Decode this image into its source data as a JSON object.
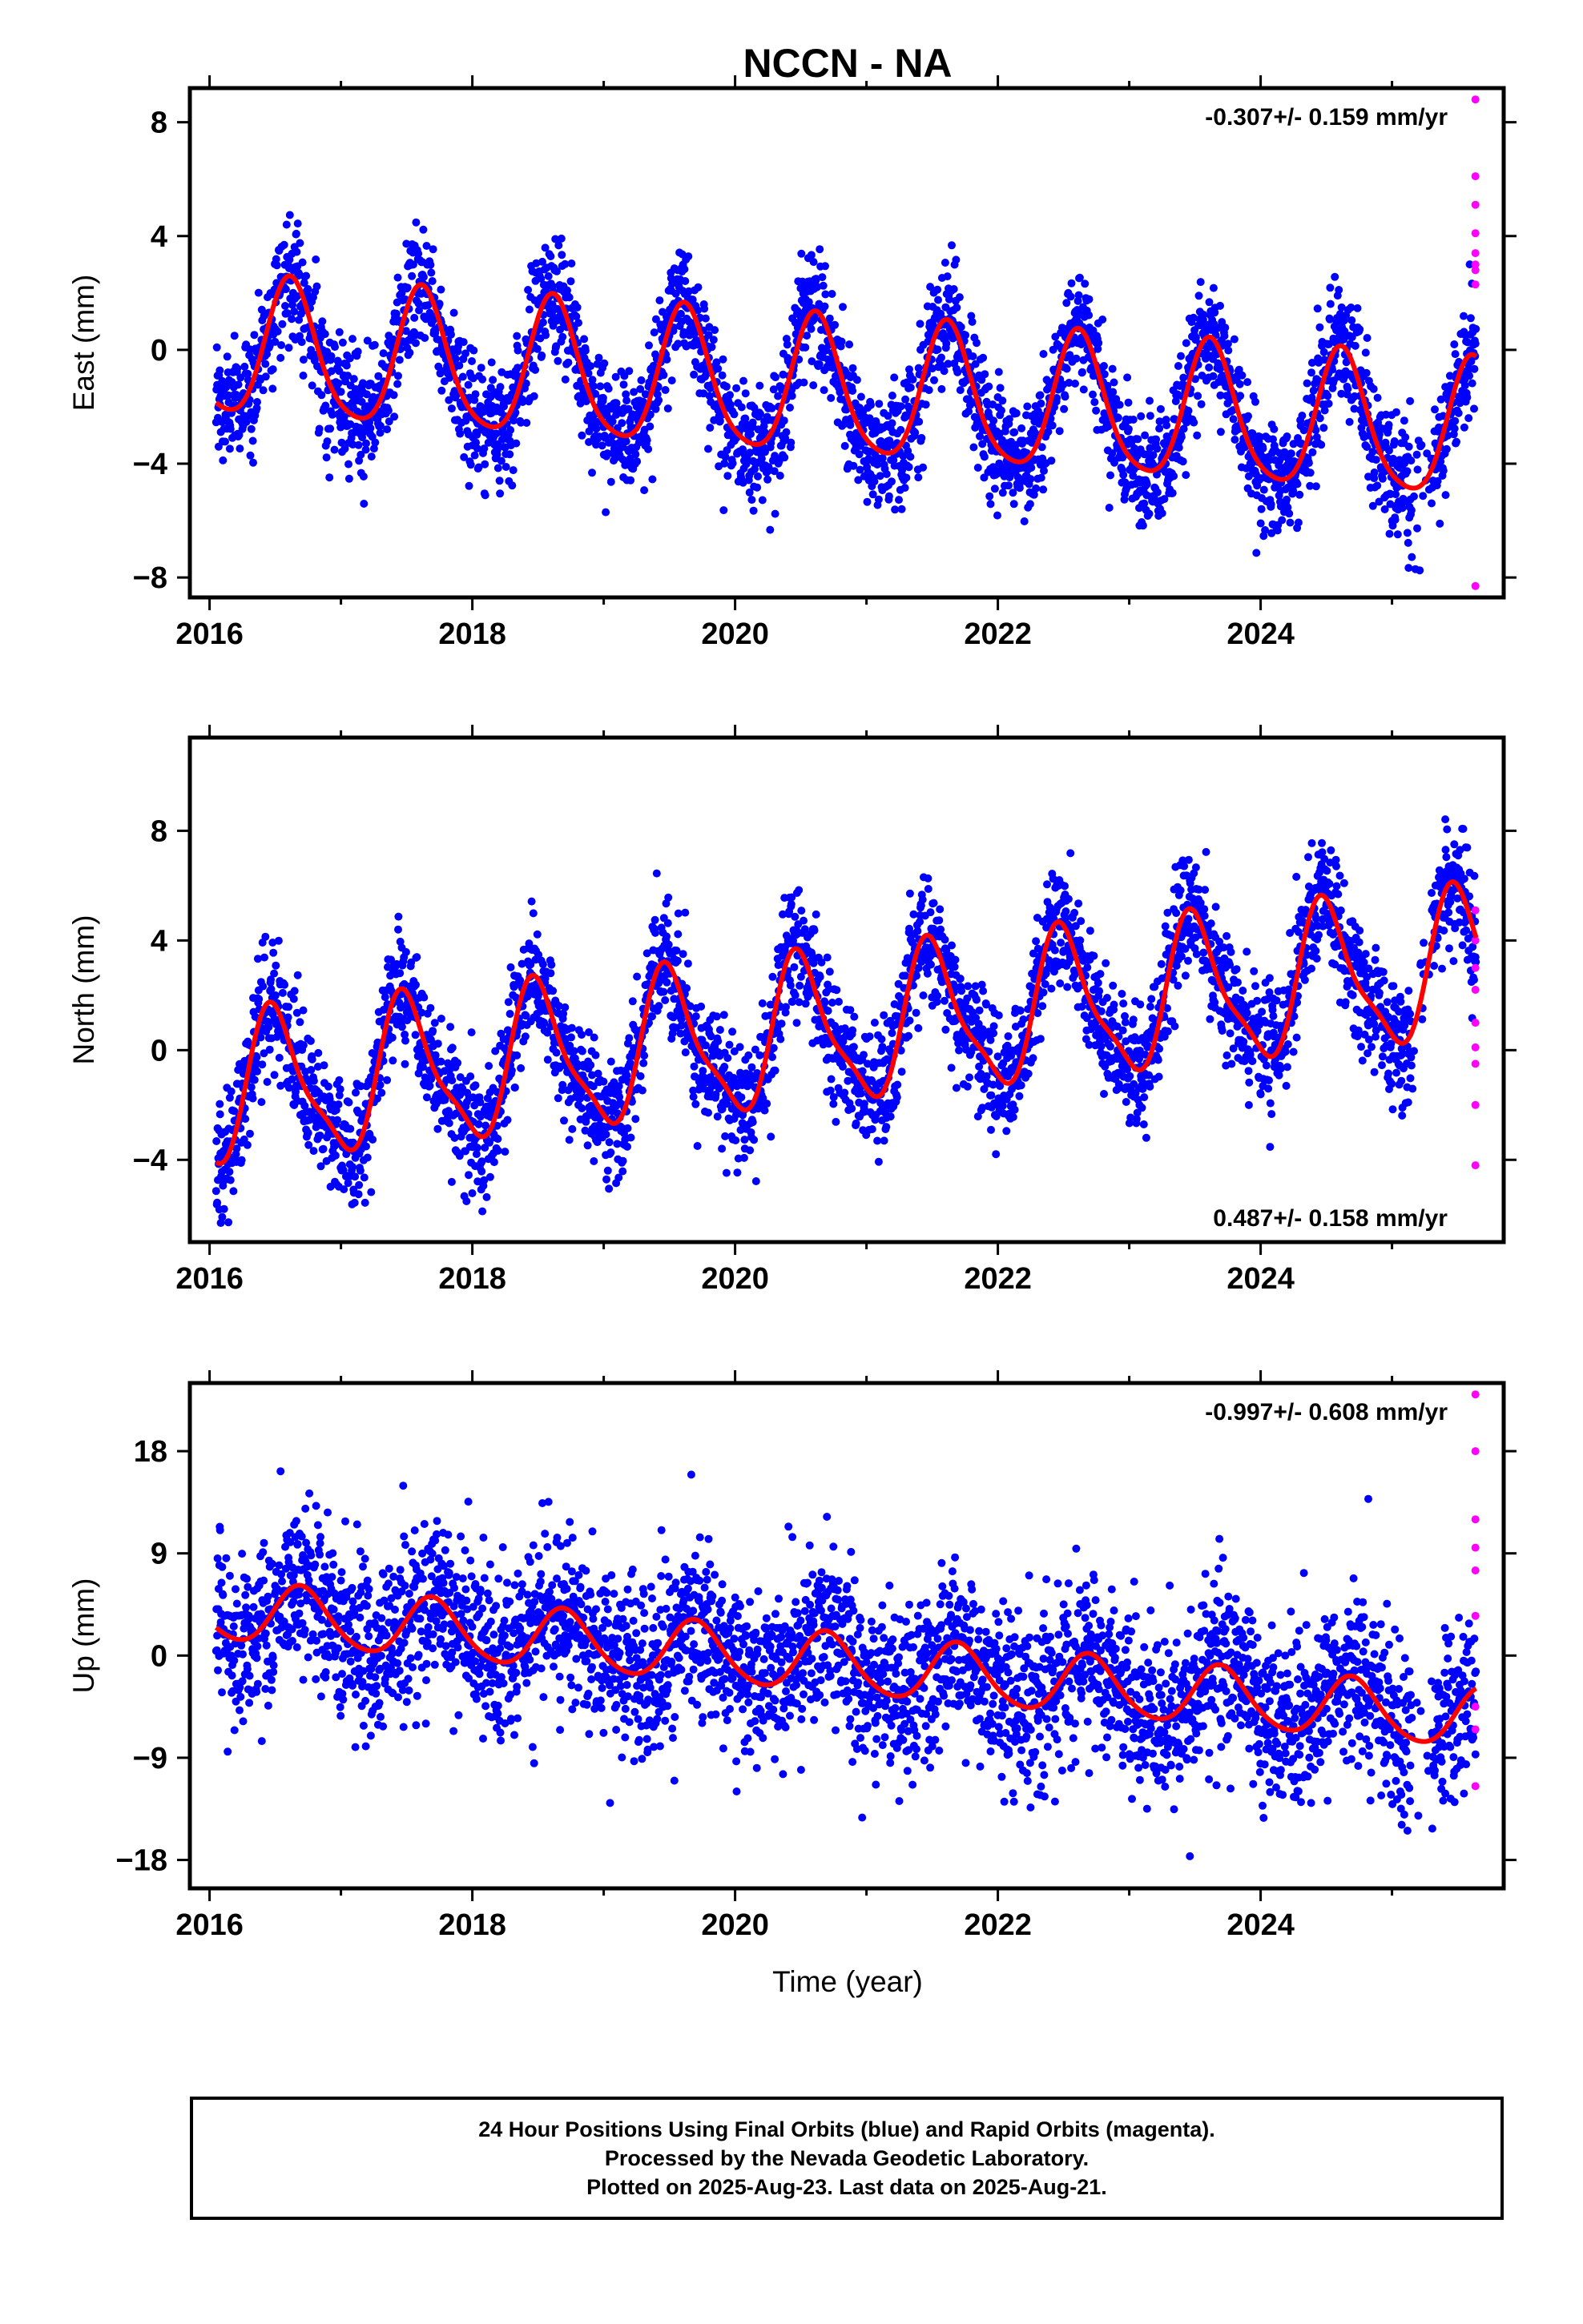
{
  "title": "NCCN - NA",
  "xlabel": "Time (year)",
  "footer": {
    "line1": "24 Hour Positions Using Final Orbits (blue) and Rapid Orbits (magenta).",
    "line2": "Processed by the Nevada Geodetic Laboratory.",
    "line3": "Plotted on 2025-Aug-23. Last data on 2025-Aug-21."
  },
  "colors": {
    "final": "#0000ff",
    "rapid": "#ff00ff",
    "fit": "#ff0000",
    "axes": "#000000"
  },
  "chart_data": [
    {
      "type": "scatter",
      "component": "east",
      "ylabel": "East (mm)",
      "rate_label": "-0.307+/- 0.159 mm/yr",
      "rate_position": "top-right",
      "xlim": [
        2015.85,
        2025.85
      ],
      "ylim": [
        -8.7,
        9.2
      ],
      "yticks": [
        -8,
        -4,
        0,
        4,
        8
      ],
      "xticks": [
        2016,
        2018,
        2020,
        2022,
        2024
      ],
      "x_start": 2016.05,
      "x_end": 2025.64,
      "fit": {
        "offset": 0.0,
        "rate": -0.307,
        "annual_amp": 2.4,
        "annual_peak": 2016.62,
        "semiannual_amp": 0.4,
        "semiannual_phase": 0.3
      },
      "scatter_sd": 1.05,
      "rapid_values": [
        8.8,
        6.1,
        5.1,
        4.1,
        3.4,
        3.0,
        2.8,
        2.3,
        -8.3
      ]
    },
    {
      "type": "scatter",
      "component": "north",
      "ylabel": "North (mm)",
      "rate_label": "0.487+/- 0.158 mm/yr",
      "rate_position": "bottom-right",
      "xlim": [
        2015.85,
        2025.85
      ],
      "ylim": [
        -7.0,
        11.4
      ],
      "yticks": [
        -4,
        0,
        4,
        8
      ],
      "xticks": [
        2016,
        2018,
        2020,
        2022,
        2024
      ],
      "x_start": 2016.05,
      "x_end": 2025.64,
      "fit": {
        "offset": -1.6,
        "rate": 0.487,
        "annual_amp": 2.6,
        "annual_peak": 2016.5,
        "semiannual_amp": 0.7,
        "semiannual_phase": 1.0
      },
      "scatter_sd": 1.1,
      "rapid_values": [
        5.1,
        4.0,
        3.0,
        2.2,
        1.0,
        0.1,
        -0.5,
        -2.0,
        -4.2
      ]
    },
    {
      "type": "scatter",
      "component": "up",
      "ylabel": "Up (mm)",
      "rate_label": "-0.997+/- 0.608 mm/yr",
      "rate_position": "top-right",
      "xlim": [
        2015.85,
        2025.85
      ],
      "ylim": [
        -20.5,
        24.0
      ],
      "yticks": [
        -18,
        -9,
        0,
        9,
        18
      ],
      "ytick_labels": [
        "−18",
        "−9",
        "0",
        "9",
        "18"
      ],
      "xticks": [
        2016,
        2018,
        2020,
        2022,
        2024
      ],
      "x_start": 2016.05,
      "x_end": 2025.64,
      "fit": {
        "offset": 4.0,
        "rate": -0.997,
        "annual_amp": 2.6,
        "annual_peak": 2016.7,
        "semiannual_amp": 0.3,
        "semiannual_phase": 0.5
      },
      "scatter_sd": 3.8,
      "rapid_values": [
        23.0,
        18.0,
        12.0,
        9.5,
        7.5,
        3.5,
        -4.5,
        -6.5,
        -11.5
      ]
    }
  ]
}
